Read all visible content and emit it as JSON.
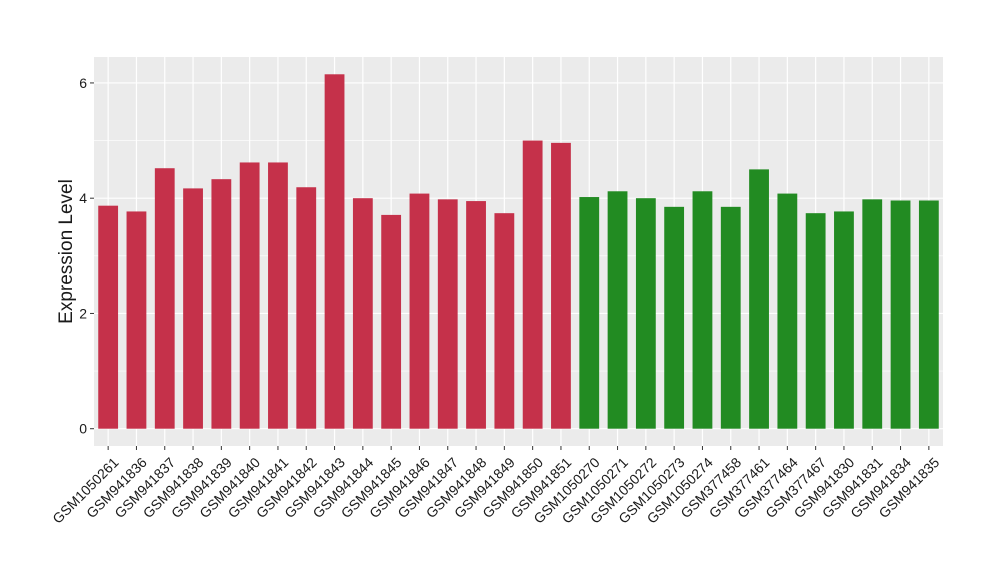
{
  "chart_data": {
    "type": "bar",
    "title": "",
    "xlabel": "",
    "ylabel": "Expression Level",
    "ylim": [
      -0.3,
      6.45
    ],
    "yticks": [
      0,
      2,
      4,
      6
    ],
    "grid": true,
    "categories": [
      "GSM1050261",
      "GSM941836",
      "GSM941837",
      "GSM941838",
      "GSM941839",
      "GSM941840",
      "GSM941841",
      "GSM941842",
      "GSM941843",
      "GSM941844",
      "GSM941845",
      "GSM941846",
      "GSM941847",
      "GSM941848",
      "GSM941849",
      "GSM941850",
      "GSM941851",
      "GSM1050270",
      "GSM1050271",
      "GSM1050272",
      "GSM1050273",
      "GSM1050274",
      "GSM377458",
      "GSM377461",
      "GSM377464",
      "GSM377467",
      "GSM941830",
      "GSM941831",
      "GSM941834",
      "GSM941835"
    ],
    "values": [
      3.87,
      3.77,
      4.52,
      4.17,
      4.33,
      4.62,
      4.62,
      4.19,
      6.15,
      4.0,
      3.71,
      4.08,
      3.98,
      3.95,
      3.74,
      5.0,
      4.96,
      4.02,
      4.12,
      4.0,
      3.85,
      4.12,
      3.85,
      4.5,
      4.08,
      3.74,
      3.77,
      3.98,
      3.96,
      3.96
    ],
    "bar_colors": [
      "#c5314a",
      "#c5314a",
      "#c5314a",
      "#c5314a",
      "#c5314a",
      "#c5314a",
      "#c5314a",
      "#c5314a",
      "#c5314a",
      "#c5314a",
      "#c5314a",
      "#c5314a",
      "#c5314a",
      "#c5314a",
      "#c5314a",
      "#c5314a",
      "#c5314a",
      "#228b22",
      "#228b22",
      "#228b22",
      "#228b22",
      "#228b22",
      "#228b22",
      "#228b22",
      "#228b22",
      "#228b22",
      "#228b22",
      "#228b22",
      "#228b22",
      "#228b22"
    ],
    "panel_background": "#ebebeb",
    "grid_color": "#ffffff"
  }
}
